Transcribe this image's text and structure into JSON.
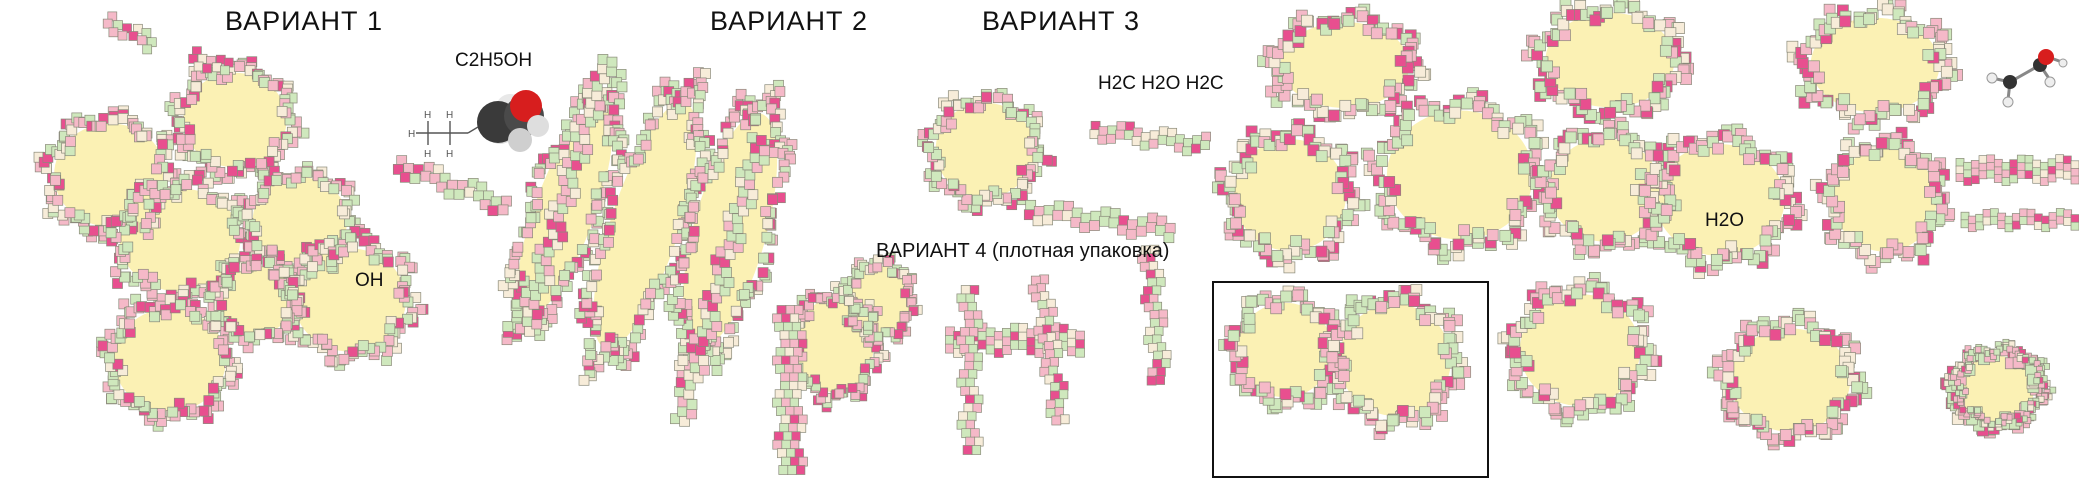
{
  "labels": {
    "variant1": "ВАРИАНТ  1",
    "variant2": "ВАРИАНТ  2",
    "variant3": "ВАРИАНТ  3",
    "variant4": "ВАРИАНТ  4 (плотная упаковка)",
    "formula_ethanol": "C2H5OH",
    "formula_chain": "H2C H2O H2C",
    "group_oh": "OH",
    "group_water": "H2O"
  },
  "colors": {
    "background": "#ffffff",
    "core_fill": "#fbf1b4",
    "tile_pink": "#e84f8f",
    "tile_light_pink": "#f5b9c8",
    "tile_green": "#cfe8bd",
    "tile_cream": "#f7ecd9",
    "tile_outline": "#8a8a7a",
    "frame": "#111111",
    "oxygen": "#d81e1e",
    "carbon": "#444444",
    "hydrogen": "#eeeeee"
  },
  "icons": {
    "ethanol_structural": "ethanol-structural-formula-icon",
    "ethanol_space_fill": "ethanol-space-filling-model-icon",
    "ethanol_ball_stick": "ethanol-ball-and-stick-model-icon"
  }
}
